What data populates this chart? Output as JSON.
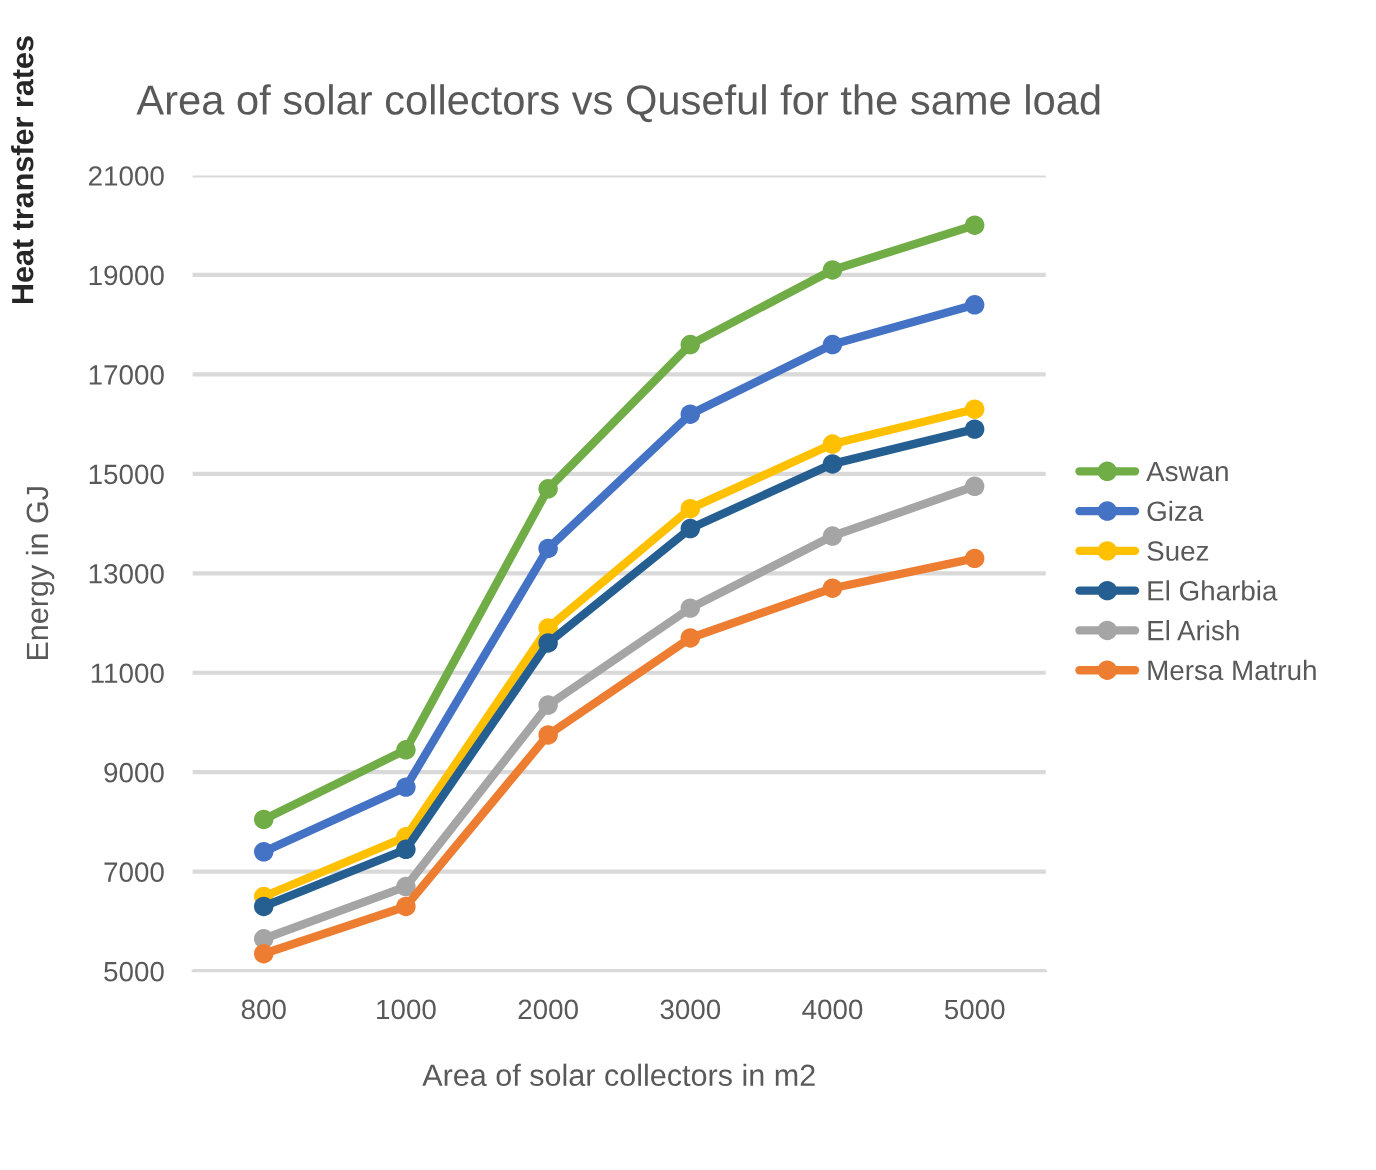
{
  "chart_data": {
    "type": "line",
    "title": "Area of solar collectors vs Quseful for the same load",
    "xlabel": "Area of solar collectors in m2",
    "ylabel": "Energy in GJ",
    "annotations": [
      "Heat transfer rates"
    ],
    "categories": [
      "800",
      "1000",
      "2000",
      "3000",
      "4000",
      "5000"
    ],
    "series": [
      {
        "name": "Aswan",
        "color": "#70ad47",
        "values": [
          8050,
          9450,
          14700,
          17600,
          19100,
          20000
        ]
      },
      {
        "name": "Giza",
        "color": "#4472c4",
        "values": [
          7400,
          8700,
          13500,
          16200,
          17600,
          18400
        ]
      },
      {
        "name": "Suez",
        "color": "#ffc000",
        "values": [
          6500,
          7700,
          11900,
          14300,
          15600,
          16300
        ]
      },
      {
        "name": "El Gharbia",
        "color": "#255e91",
        "values": [
          6300,
          7450,
          11600,
          13900,
          15200,
          15900
        ]
      },
      {
        "name": "El Arish",
        "color": "#a5a5a5",
        "values": [
          5650,
          6700,
          10350,
          12300,
          13750,
          14750
        ]
      },
      {
        "name": "Mersa Matruh",
        "color": "#ed7d31",
        "values": [
          5350,
          6300,
          9750,
          11700,
          12700,
          13300
        ]
      }
    ],
    "ylim": [
      5000,
      21000
    ],
    "yticks": [
      5000,
      7000,
      9000,
      11000,
      13000,
      15000,
      17000,
      19000,
      21000
    ],
    "grid": "y",
    "legend": "right",
    "marker": "circle",
    "line_style": "solid"
  }
}
